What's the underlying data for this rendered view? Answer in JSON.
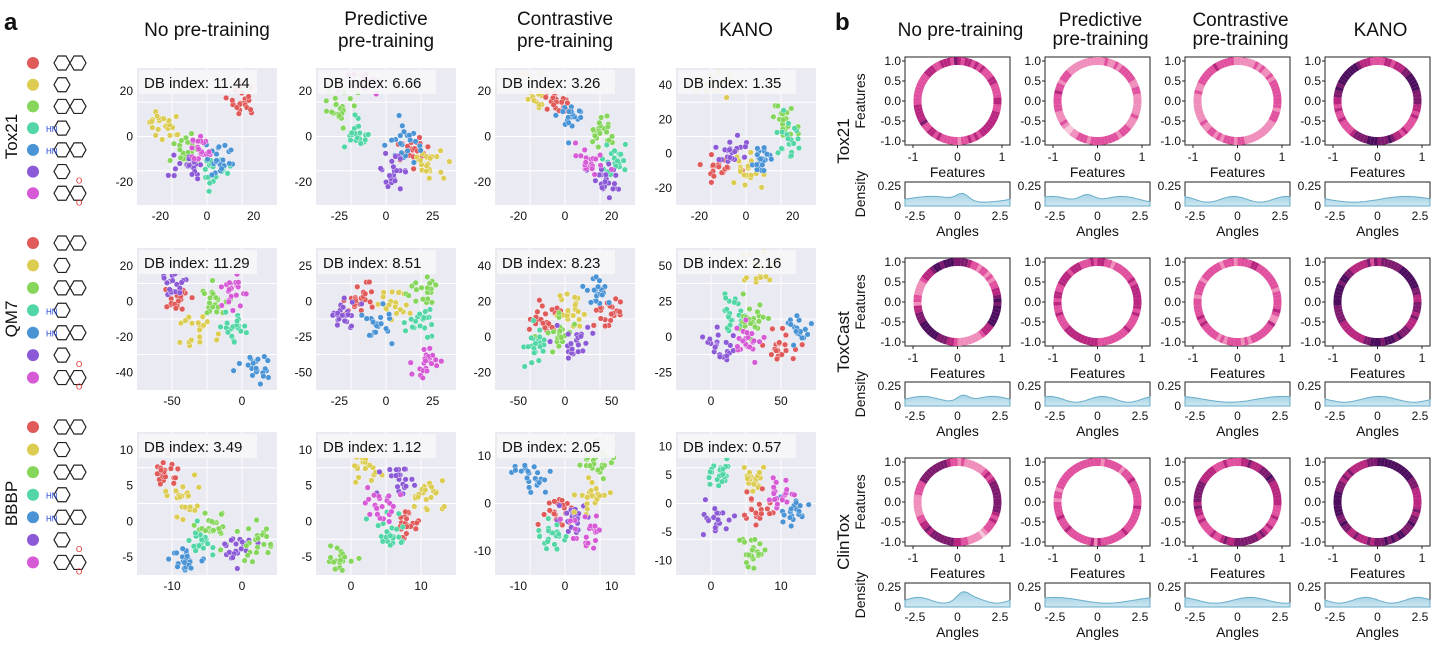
{
  "panel_a": {
    "label": "a",
    "columns": [
      "No pre-training",
      "Predictive\npre-training",
      "Contrastive\npre-training",
      "KANO"
    ],
    "rows": [
      {
        "dataset": "Tox21",
        "legend_colors": [
          "#e05a5a",
          "#dccc52",
          "#86d65c",
          "#52d6a6",
          "#4a94d6",
          "#8c5ad6",
          "#d65ad6"
        ],
        "plots": [
          {
            "db": "DB index: 11.44",
            "x_ticks": [
              "-20",
              "0",
              "20"
            ],
            "y_ticks": [
              "20",
              "0",
              "-20"
            ]
          },
          {
            "db": "DB index: 6.66",
            "x_ticks": [
              "-25",
              "0",
              "25"
            ],
            "y_ticks": [
              "20",
              "0",
              "-20"
            ]
          },
          {
            "db": "DB index: 3.26",
            "x_ticks": [
              "-20",
              "0",
              "20"
            ],
            "y_ticks": [
              "20",
              "0",
              "-20"
            ]
          },
          {
            "db": "DB index: 1.35",
            "x_ticks": [
              "-20",
              "0",
              "20"
            ],
            "y_ticks": [
              "40",
              "20",
              "0",
              "-20"
            ]
          }
        ]
      },
      {
        "dataset": "QM7",
        "legend_colors": [
          "#e05a5a",
          "#dccc52",
          "#86d65c",
          "#52d6a6",
          "#4a94d6",
          "#8c5ad6",
          "#d65ad6"
        ],
        "plots": [
          {
            "db": "DB index: 11.29",
            "x_ticks": [
              "-50",
              "0"
            ],
            "y_ticks": [
              "20",
              "0",
              "-20",
              "-40"
            ]
          },
          {
            "db": "DB index: 8.51",
            "x_ticks": [
              "-25",
              "0",
              "25"
            ],
            "y_ticks": [
              "25",
              "0",
              "-25",
              "-50"
            ]
          },
          {
            "db": "DB index: 8.23",
            "x_ticks": [
              "-50",
              "0",
              "50"
            ],
            "y_ticks": [
              "40",
              "20",
              "0",
              "-20"
            ]
          },
          {
            "db": "DB index: 2.16",
            "x_ticks": [
              "0",
              "50"
            ],
            "y_ticks": [
              "50",
              "25",
              "0",
              "-25"
            ]
          }
        ]
      },
      {
        "dataset": "BBBP",
        "legend_colors": [
          "#e05a5a",
          "#dccc52",
          "#86d65c",
          "#52d6a6",
          "#4a94d6",
          "#8c5ad6",
          "#d65ad6"
        ],
        "plots": [
          {
            "db": "DB index: 3.49",
            "x_ticks": [
              "-10",
              "0"
            ],
            "y_ticks": [
              "10",
              "5",
              "0",
              "-5"
            ]
          },
          {
            "db": "DB index: 1.12",
            "x_ticks": [
              "0",
              "10"
            ],
            "y_ticks": [
              "10",
              "5",
              "0",
              "-5"
            ]
          },
          {
            "db": "DB index: 2.05",
            "x_ticks": [
              "-10",
              "0",
              "10"
            ],
            "y_ticks": [
              "10",
              "0",
              "-10"
            ]
          },
          {
            "db": "DB index: 0.57",
            "x_ticks": [
              "0",
              "10"
            ],
            "y_ticks": [
              "10",
              "5",
              "0",
              "-5",
              "-10"
            ]
          }
        ]
      }
    ]
  },
  "panel_b": {
    "label": "b",
    "columns": [
      "No pre-training",
      "Predictive\npre-training",
      "Contrastive\npre-training",
      "KANO"
    ],
    "rows": [
      "Tox21",
      "ToxCast",
      "ClinTox"
    ],
    "circle_x_ticks": [
      "-1",
      "0",
      "1"
    ],
    "circle_y_ticks": [
      "1.0",
      "0.5",
      "0.0",
      "-0.5",
      "-1.0"
    ],
    "circle_xlabel": "Features",
    "circle_ylabel": "Features",
    "density_ylabel": "Density",
    "density_xlabel": "Angles",
    "density_y_ticks": [
      "0.25",
      "0"
    ],
    "density_x_ticks": [
      "-2.5",
      "0",
      "2.5"
    ]
  },
  "chart_data": [
    {
      "type": "scatter",
      "title": "Tox21 / No pre-training",
      "annotation": "DB index: 11.44"
    },
    {
      "type": "scatter",
      "title": "Tox21 / Predictive pre-training",
      "annotation": "DB index: 6.66"
    },
    {
      "type": "scatter",
      "title": "Tox21 / Contrastive pre-training",
      "annotation": "DB index: 3.26"
    },
    {
      "type": "scatter",
      "title": "Tox21 / KANO",
      "annotation": "DB index: 1.35"
    },
    {
      "type": "scatter",
      "title": "QM7 / No pre-training",
      "annotation": "DB index: 11.29"
    },
    {
      "type": "scatter",
      "title": "QM7 / Predictive pre-training",
      "annotation": "DB index: 8.51"
    },
    {
      "type": "scatter",
      "title": "QM7 / Contrastive pre-training",
      "annotation": "DB index: 8.23"
    },
    {
      "type": "scatter",
      "title": "QM7 / KANO",
      "annotation": "DB index: 2.16"
    },
    {
      "type": "scatter",
      "title": "BBBP / No pre-training",
      "annotation": "DB index: 3.49"
    },
    {
      "type": "scatter",
      "title": "BBBP / Predictive pre-training",
      "annotation": "DB index: 1.12"
    },
    {
      "type": "scatter",
      "title": "BBBP / Contrastive pre-training",
      "annotation": "DB index: 2.05"
    },
    {
      "type": "scatter",
      "title": "BBBP / KANO",
      "annotation": "DB index: 0.57"
    }
  ]
}
